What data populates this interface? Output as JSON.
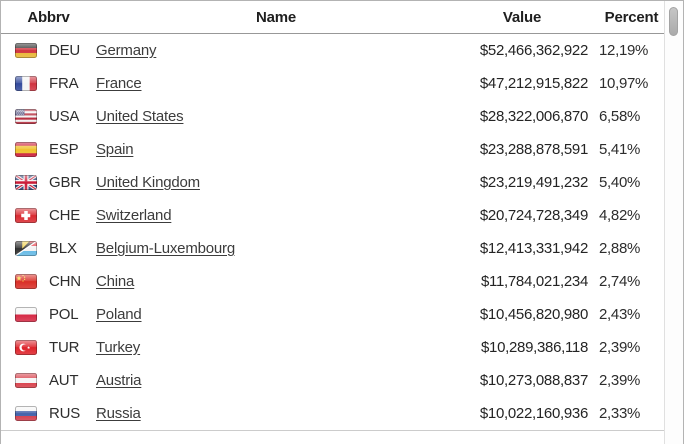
{
  "table": {
    "columns": {
      "abbrv": "Abbrv",
      "name": "Name",
      "value": "Value",
      "percent": "Percent"
    },
    "rows": [
      {
        "flag": "flag-deu",
        "abbrv": "DEU",
        "name": "Germany",
        "value": "$52,466,362,922",
        "percent": "12,19%"
      },
      {
        "flag": "flag-fra",
        "abbrv": "FRA",
        "name": "France",
        "value": "$47,212,915,822",
        "percent": "10,97%"
      },
      {
        "flag": "flag-usa",
        "abbrv": "USA",
        "name": "United States",
        "value": "$28,322,006,870",
        "percent": "6,58%"
      },
      {
        "flag": "flag-esp",
        "abbrv": "ESP",
        "name": "Spain",
        "value": "$23,288,878,591",
        "percent": "5,41%"
      },
      {
        "flag": "flag-gbr",
        "abbrv": "GBR",
        "name": "United Kingdom",
        "value": "$23,219,491,232",
        "percent": "5,40%"
      },
      {
        "flag": "flag-che",
        "abbrv": "CHE",
        "name": "Switzerland",
        "value": "$20,724,728,349",
        "percent": "4,82%"
      },
      {
        "flag": "flag-blx",
        "abbrv": "BLX",
        "name": "Belgium-Luxembourg",
        "value": "$12,413,331,942",
        "percent": "2,88%"
      },
      {
        "flag": "flag-chn",
        "abbrv": "CHN",
        "name": "China",
        "value": "$11,784,021,234",
        "percent": "2,74%"
      },
      {
        "flag": "flag-pol",
        "abbrv": "POL",
        "name": "Poland",
        "value": "$10,456,820,980",
        "percent": "2,43%"
      },
      {
        "flag": "flag-tur",
        "abbrv": "TUR",
        "name": "Turkey",
        "value": "$10,289,386,118",
        "percent": "2,39%"
      },
      {
        "flag": "flag-aut",
        "abbrv": "AUT",
        "name": "Austria",
        "value": "$10,273,088,837",
        "percent": "2,39%"
      },
      {
        "flag": "flag-rus",
        "abbrv": "RUS",
        "name": "Russia",
        "value": "$10,022,160,936",
        "percent": "2,33%"
      }
    ]
  },
  "colors": {
    "link": "#3c3c3c",
    "header_border": "#989898",
    "outer_border": "#b3b3b3"
  }
}
